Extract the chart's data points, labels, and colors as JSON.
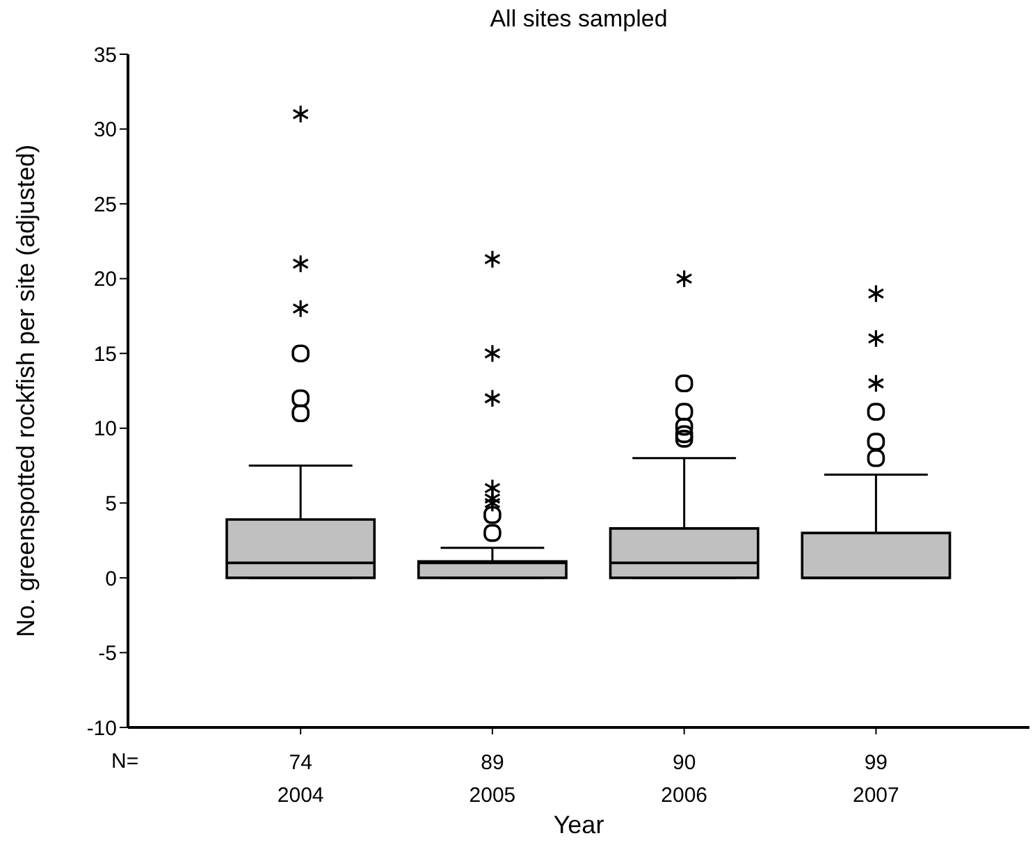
{
  "chart_data": {
    "type": "box",
    "title": "All sites sampled",
    "xlabel": "Year",
    "ylabel": "No. greenspotted rockfish per site (adjusted)",
    "x": [
      2004,
      2005,
      2006,
      2007
    ],
    "xlim": [
      2003.1,
      2007.8
    ],
    "xticks": [
      2004,
      2005,
      2006,
      2007
    ],
    "ylim": [
      -10,
      35
    ],
    "yticks": [
      -10,
      -5,
      0,
      5,
      10,
      15,
      20,
      25,
      30,
      35
    ],
    "series": [
      {
        "type": "box",
        "color": "#c0c0c0",
        "boxes": [
          {
            "low": 0,
            "q1": 0,
            "median": 1,
            "q3": 3.9,
            "high": 7.5,
            "outliers": [
              15,
              12,
              11
            ]
          },
          {
            "low": 0,
            "q1": 0,
            "median": 1,
            "q3": 1.1,
            "high": 2,
            "outliers": [
              4.2,
              3
            ]
          },
          {
            "low": 0,
            "q1": 0,
            "median": 1,
            "q3": 3.3,
            "high": 8,
            "outliers": [
              13,
              11.1,
              10.1,
              9.6,
              9.3
            ]
          },
          {
            "low": 0,
            "q1": 0,
            "median": 0,
            "q3": 3,
            "high": 6.9,
            "outliers": [
              11.1,
              9.1,
              8
            ]
          }
        ]
      },
      {
        "type": "scatter",
        "marker": "cross",
        "color": "#000000",
        "x": [
          2004,
          2004,
          2004,
          2005,
          2005,
          2005,
          2005,
          2005,
          2005,
          2006,
          2007,
          2007,
          2007
        ],
        "values": [
          31,
          21,
          18,
          21.3,
          15,
          12,
          6,
          5.3,
          5,
          20,
          19,
          16,
          13
        ]
      }
    ],
    "annotations": [
      "N=",
      {
        "text": "74",
        "x": 2004
      },
      {
        "text": "89",
        "x": 2005
      },
      {
        "text": "90",
        "x": 2006
      },
      {
        "text": "99",
        "x": 2007
      }
    ]
  }
}
